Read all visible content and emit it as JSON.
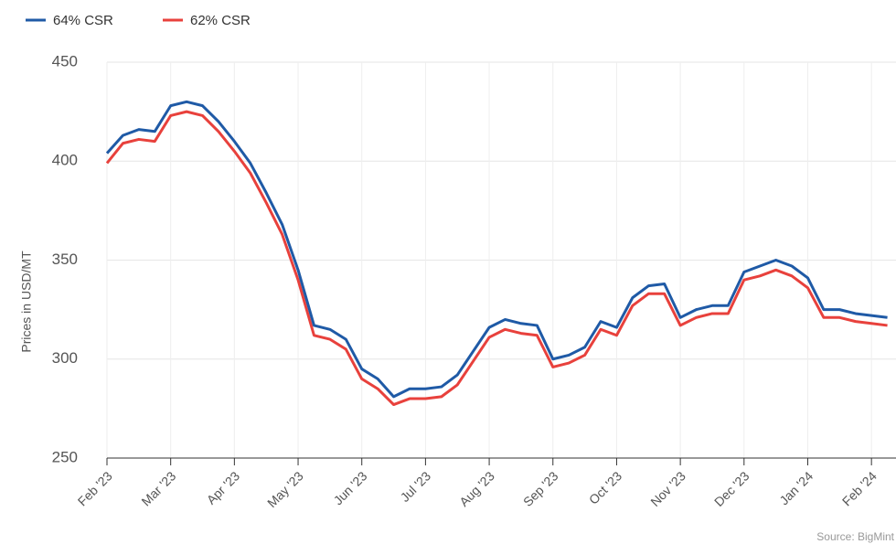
{
  "chart_data": {
    "type": "line",
    "y_label": "Prices in USD/MT",
    "source": "Source: BigMint",
    "categories": [
      "Feb '23",
      null,
      null,
      null,
      "Mar '23",
      null,
      null,
      null,
      "Apr '23",
      null,
      null,
      null,
      "May '23",
      null,
      null,
      null,
      "Jun '23",
      null,
      null,
      null,
      "Jul '23",
      null,
      null,
      null,
      "Aug '23",
      null,
      null,
      null,
      "Sep '23",
      null,
      null,
      null,
      "Oct '23",
      null,
      null,
      null,
      "Nov '23",
      null,
      null,
      null,
      "Dec '23",
      null,
      null,
      null,
      "Jan '24",
      null,
      null,
      null,
      "Feb '24",
      null
    ],
    "series": [
      {
        "name": "64% CSR",
        "color": "#1f5aa6",
        "values": [
          404,
          413,
          416,
          415,
          428,
          430,
          428,
          420,
          410,
          399,
          384,
          368,
          345,
          317,
          315,
          310,
          295,
          290,
          281,
          285,
          285,
          286,
          292,
          304,
          316,
          320,
          318,
          317,
          300,
          302,
          306,
          319,
          316,
          331,
          337,
          338,
          321,
          325,
          327,
          327,
          344,
          347,
          350,
          347,
          341,
          325,
          325,
          323,
          322,
          321
        ]
      },
      {
        "name": "62% CSR",
        "color": "#e8413c",
        "values": [
          399,
          409,
          411,
          410,
          423,
          425,
          423,
          415,
          405,
          394,
          379,
          363,
          340,
          312,
          310,
          305,
          290,
          285,
          277,
          280,
          280,
          281,
          287,
          299,
          311,
          315,
          313,
          312,
          296,
          298,
          302,
          315,
          312,
          327,
          333,
          333,
          317,
          321,
          323,
          323,
          340,
          342,
          345,
          342,
          336,
          321,
          321,
          319,
          318,
          317
        ]
      }
    ],
    "ylim": [
      250,
      450
    ],
    "yticks": [
      250,
      300,
      350,
      400,
      450
    ],
    "grid": true
  }
}
